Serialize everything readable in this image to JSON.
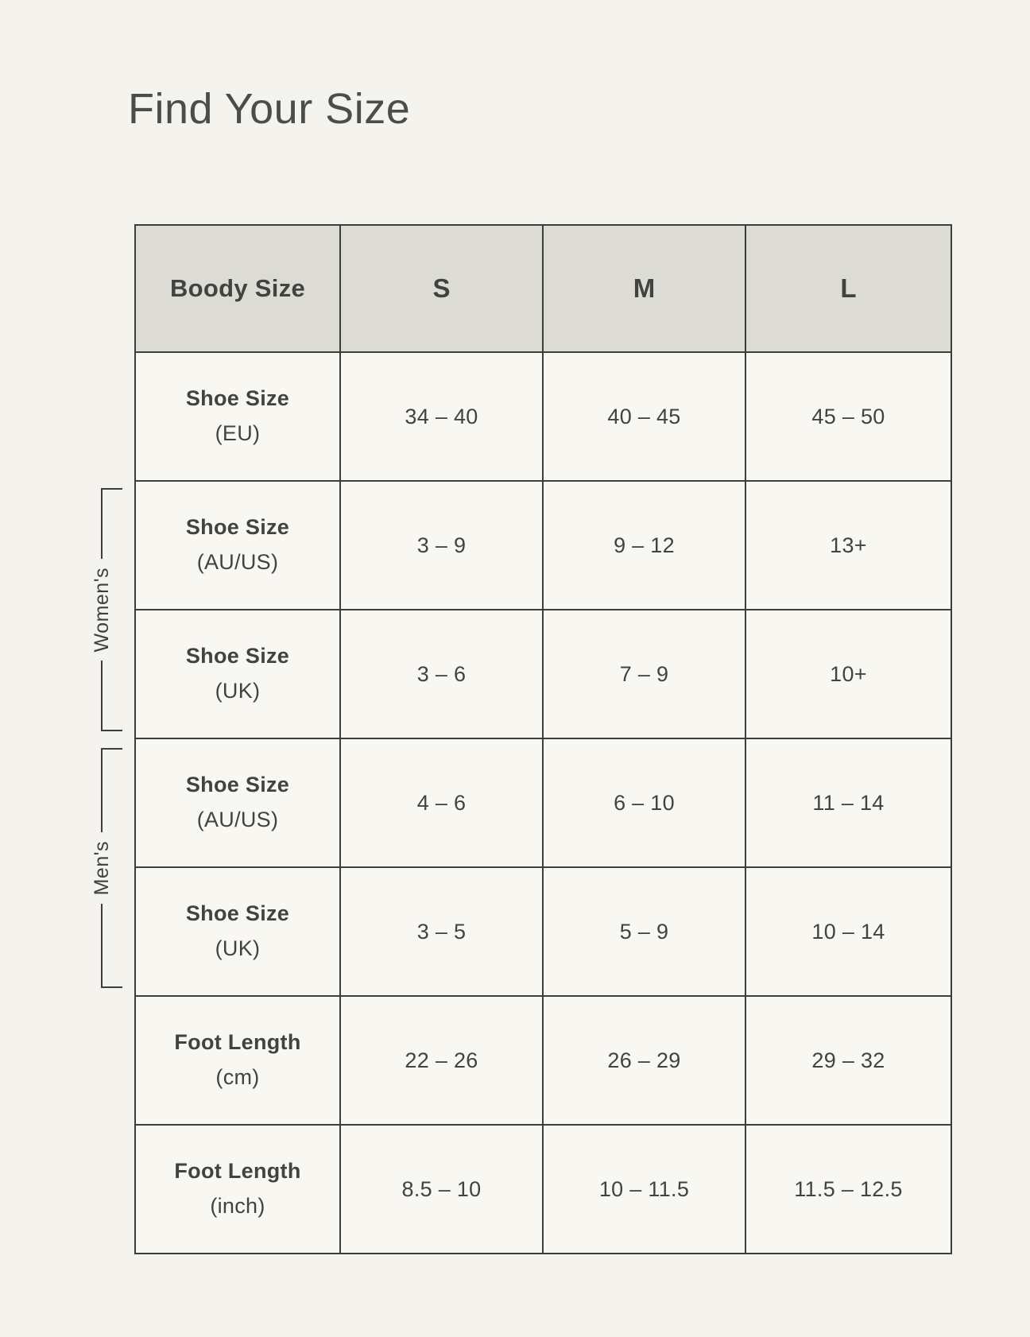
{
  "page_title": "Find Your Size",
  "colors": {
    "page_background": "#f4f3ed",
    "header_background": "#dcdcd5",
    "cell_background": "#f8f7f1",
    "border": "#3d3d3b",
    "text": "#424240"
  },
  "chart_data": {
    "type": "table",
    "title": "Find Your Size",
    "columns": [
      "Boody Size",
      "S",
      "M",
      "L"
    ],
    "rows": [
      {
        "label": "Shoe Size",
        "sublabel": "(EU)",
        "group": "",
        "values": [
          "34 – 40",
          "40 – 45",
          "45 – 50"
        ]
      },
      {
        "label": "Shoe Size",
        "sublabel": "(AU/US)",
        "group": "Women's",
        "values": [
          "3 – 9",
          "9 – 12",
          "13+"
        ]
      },
      {
        "label": "Shoe Size",
        "sublabel": "(UK)",
        "group": "Women's",
        "values": [
          "3 – 6",
          "7 – 9",
          "10+"
        ]
      },
      {
        "label": "Shoe Size",
        "sublabel": "(AU/US)",
        "group": "Men's",
        "values": [
          "4 – 6",
          "6 – 10",
          "11 – 14"
        ]
      },
      {
        "label": "Shoe Size",
        "sublabel": "(UK)",
        "group": "Men's",
        "values": [
          "3 – 5",
          "5 – 9",
          "10 – 14"
        ]
      },
      {
        "label": "Foot Length",
        "sublabel": "(cm)",
        "group": "",
        "values": [
          "22 – 26",
          "26 – 29",
          "29 – 32"
        ]
      },
      {
        "label": "Foot Length",
        "sublabel": "(inch)",
        "group": "",
        "values": [
          "8.5 – 10",
          "10 – 11.5",
          "11.5 – 12.5"
        ]
      }
    ],
    "row_groups": [
      {
        "label": "Women's",
        "row_indices": [
          1,
          2
        ]
      },
      {
        "label": "Men's",
        "row_indices": [
          3,
          4
        ]
      }
    ],
    "layout_hints": {
      "grid": "all-borders",
      "header_shaded": true,
      "group_brackets_position": "left"
    }
  }
}
